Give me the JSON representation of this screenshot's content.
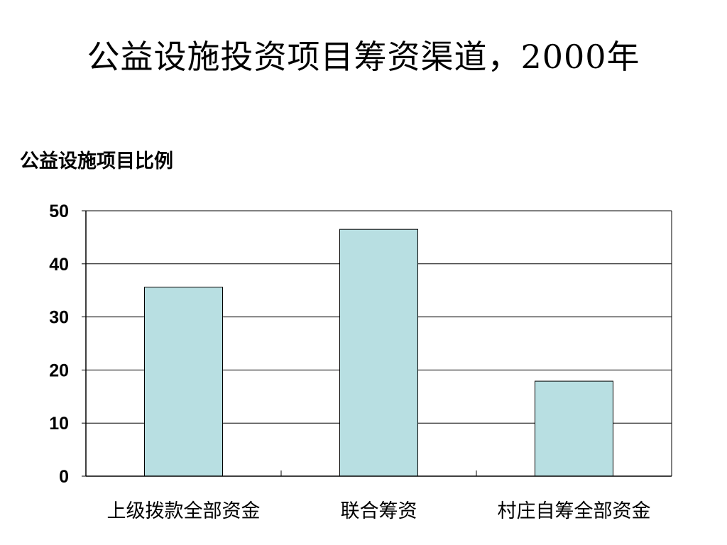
{
  "slide": {
    "title": "公益设施投资项目筹资渠道，2000年"
  },
  "chart_data": {
    "type": "bar",
    "title": "公益设施投资项目筹资渠道，2000年",
    "ylabel": "公益设施项目比例",
    "xlabel": "",
    "categories": [
      "上级拨款全部资金",
      "联合筹资",
      "村庄自筹全部资金"
    ],
    "values": [
      35.6,
      46.5,
      17.9
    ],
    "ylim": [
      0,
      50
    ],
    "yticks": [
      0,
      10,
      20,
      30,
      40,
      50
    ],
    "grid": true,
    "legend": "none",
    "bar_color": "#b8dfe2",
    "bar_stroke": "#000000"
  }
}
